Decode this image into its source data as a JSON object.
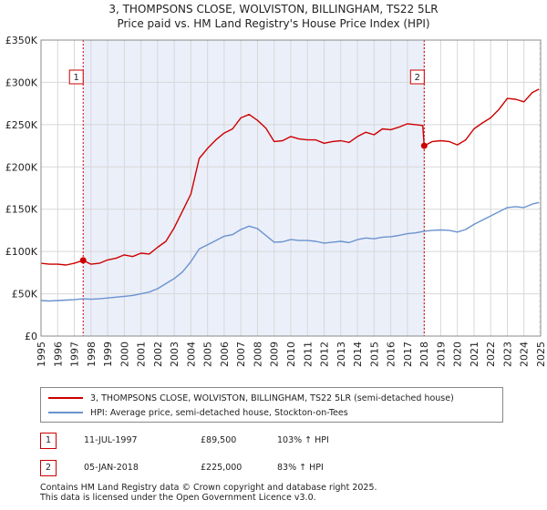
{
  "chart_data": {
    "type": "line",
    "title": "3, THOMPSONS CLOSE, WOLVISTON, BILLINGHAM, TS22 5LR",
    "subtitle": "Price paid vs. HM Land Registry's House Price Index (HPI)",
    "xlabel": "",
    "ylabel": "",
    "xlim": [
      1995,
      2025
    ],
    "ylim": [
      0,
      350000
    ],
    "x_ticks": [
      "1995",
      "1996",
      "1997",
      "1998",
      "1999",
      "2000",
      "2001",
      "2002",
      "2003",
      "2004",
      "2005",
      "2006",
      "2007",
      "2008",
      "2009",
      "2010",
      "2011",
      "2012",
      "2013",
      "2014",
      "2015",
      "2016",
      "2017",
      "2018",
      "2019",
      "2020",
      "2021",
      "2022",
      "2023",
      "2024",
      "2025"
    ],
    "y_ticks": [
      {
        "value": 0,
        "label": "£0"
      },
      {
        "value": 50000,
        "label": "£50K"
      },
      {
        "value": 100000,
        "label": "£100K"
      },
      {
        "value": 150000,
        "label": "£150K"
      },
      {
        "value": 200000,
        "label": "£200K"
      },
      {
        "value": 250000,
        "label": "£250K"
      },
      {
        "value": 300000,
        "label": "£300K"
      },
      {
        "value": 350000,
        "label": "£350K"
      }
    ],
    "grid": true,
    "series": [
      {
        "name": "3, THOMPSONS CLOSE, WOLVISTON, BILLINGHAM, TS22 5LR (semi-detached house)",
        "color": "#cc0000",
        "points": [
          [
            1995.0,
            86000
          ],
          [
            1995.5,
            85000
          ],
          [
            1996.0,
            85000
          ],
          [
            1996.5,
            84000
          ],
          [
            1997.0,
            86000
          ],
          [
            1997.53,
            89500
          ],
          [
            1998.0,
            85000
          ],
          [
            1998.5,
            86000
          ],
          [
            1999.0,
            90000
          ],
          [
            1999.5,
            92000
          ],
          [
            2000.0,
            96000
          ],
          [
            2000.5,
            94000
          ],
          [
            2001.0,
            98000
          ],
          [
            2001.5,
            97000
          ],
          [
            2002.0,
            105000
          ],
          [
            2002.5,
            112000
          ],
          [
            2003.0,
            128000
          ],
          [
            2003.5,
            148000
          ],
          [
            2004.0,
            168000
          ],
          [
            2004.5,
            210000
          ],
          [
            2005.0,
            222000
          ],
          [
            2005.5,
            232000
          ],
          [
            2006.0,
            240000
          ],
          [
            2006.5,
            245000
          ],
          [
            2007.0,
            258000
          ],
          [
            2007.5,
            262000
          ],
          [
            2008.0,
            255000
          ],
          [
            2008.5,
            246000
          ],
          [
            2009.0,
            230000
          ],
          [
            2009.5,
            231000
          ],
          [
            2010.0,
            236000
          ],
          [
            2010.5,
            233000
          ],
          [
            2011.0,
            232000
          ],
          [
            2011.5,
            232000
          ],
          [
            2012.0,
            228000
          ],
          [
            2012.5,
            230000
          ],
          [
            2013.0,
            231000
          ],
          [
            2013.5,
            229000
          ],
          [
            2014.0,
            236000
          ],
          [
            2014.5,
            241000
          ],
          [
            2015.0,
            238000
          ],
          [
            2015.5,
            245000
          ],
          [
            2016.0,
            244000
          ],
          [
            2016.5,
            247000
          ],
          [
            2017.0,
            251000
          ],
          [
            2017.5,
            250000
          ],
          [
            2017.92,
            249000
          ],
          [
            2018.01,
            225000
          ],
          [
            2018.5,
            230000
          ],
          [
            2019.0,
            231000
          ],
          [
            2019.5,
            230000
          ],
          [
            2020.0,
            226000
          ],
          [
            2020.5,
            232000
          ],
          [
            2021.0,
            245000
          ],
          [
            2021.5,
            252000
          ],
          [
            2022.0,
            258000
          ],
          [
            2022.5,
            268000
          ],
          [
            2023.0,
            281000
          ],
          [
            2023.5,
            280000
          ],
          [
            2024.0,
            277000
          ],
          [
            2024.5,
            288000
          ],
          [
            2024.9,
            292000
          ]
        ]
      },
      {
        "name": "HPI: Average price, semi-detached house, Stockton-on-Tees",
        "color": "#6a93cf",
        "points": [
          [
            1995.0,
            42000
          ],
          [
            1995.5,
            41500
          ],
          [
            1996.0,
            42000
          ],
          [
            1996.5,
            42500
          ],
          [
            1997.0,
            43000
          ],
          [
            1997.5,
            44000
          ],
          [
            1998.0,
            43500
          ],
          [
            1998.5,
            44000
          ],
          [
            1999.0,
            45000
          ],
          [
            1999.5,
            46000
          ],
          [
            2000.0,
            47000
          ],
          [
            2000.5,
            48000
          ],
          [
            2001.0,
            50000
          ],
          [
            2001.5,
            52000
          ],
          [
            2002.0,
            56000
          ],
          [
            2002.5,
            62000
          ],
          [
            2003.0,
            68000
          ],
          [
            2003.5,
            76000
          ],
          [
            2004.0,
            88000
          ],
          [
            2004.5,
            103000
          ],
          [
            2005.0,
            108000
          ],
          [
            2005.5,
            113000
          ],
          [
            2006.0,
            118000
          ],
          [
            2006.5,
            120000
          ],
          [
            2007.0,
            126000
          ],
          [
            2007.5,
            130000
          ],
          [
            2008.0,
            127000
          ],
          [
            2008.5,
            119000
          ],
          [
            2009.0,
            111000
          ],
          [
            2009.5,
            111500
          ],
          [
            2010.0,
            114000
          ],
          [
            2010.5,
            113000
          ],
          [
            2011.0,
            113000
          ],
          [
            2011.5,
            112000
          ],
          [
            2012.0,
            110000
          ],
          [
            2012.5,
            111000
          ],
          [
            2013.0,
            112000
          ],
          [
            2013.5,
            110500
          ],
          [
            2014.0,
            114000
          ],
          [
            2014.5,
            116000
          ],
          [
            2015.0,
            115000
          ],
          [
            2015.5,
            117000
          ],
          [
            2016.0,
            117500
          ],
          [
            2016.5,
            119000
          ],
          [
            2017.0,
            121000
          ],
          [
            2017.5,
            122000
          ],
          [
            2018.0,
            124000
          ],
          [
            2018.5,
            125000
          ],
          [
            2019.0,
            125500
          ],
          [
            2019.5,
            125000
          ],
          [
            2020.0,
            123000
          ],
          [
            2020.5,
            126000
          ],
          [
            2021.0,
            132000
          ],
          [
            2021.5,
            137000
          ],
          [
            2022.0,
            142000
          ],
          [
            2022.5,
            147000
          ],
          [
            2023.0,
            152000
          ],
          [
            2023.5,
            153000
          ],
          [
            2024.0,
            152000
          ],
          [
            2024.5,
            156000
          ],
          [
            2024.9,
            158000
          ]
        ]
      }
    ],
    "sales": [
      {
        "id": "1",
        "x": 1997.53,
        "value": 89500
      },
      {
        "id": "2",
        "x": 2018.01,
        "value": 225000
      }
    ],
    "shade": {
      "from": 1997.53,
      "to": 2018.01,
      "color": "#dde5f5"
    },
    "hatch_from": 2024.9
  },
  "legend": {
    "property": "3, THOMPSONS CLOSE, WOLVISTON, BILLINGHAM, TS22 5LR (semi-detached house)",
    "hpi": "HPI: Average price, semi-detached house, Stockton-on-Tees"
  },
  "transactions": [
    {
      "id": "1",
      "date": "11-JUL-1997",
      "price": "£89,500",
      "hpi": "103% ↑ HPI"
    },
    {
      "id": "2",
      "date": "05-JAN-2018",
      "price": "£225,000",
      "hpi": "83% ↑ HPI"
    }
  ],
  "footer": {
    "line1": "Contains HM Land Registry data © Crown copyright and database right 2025.",
    "line2": "This data is licensed under the Open Government Licence v3.0."
  }
}
